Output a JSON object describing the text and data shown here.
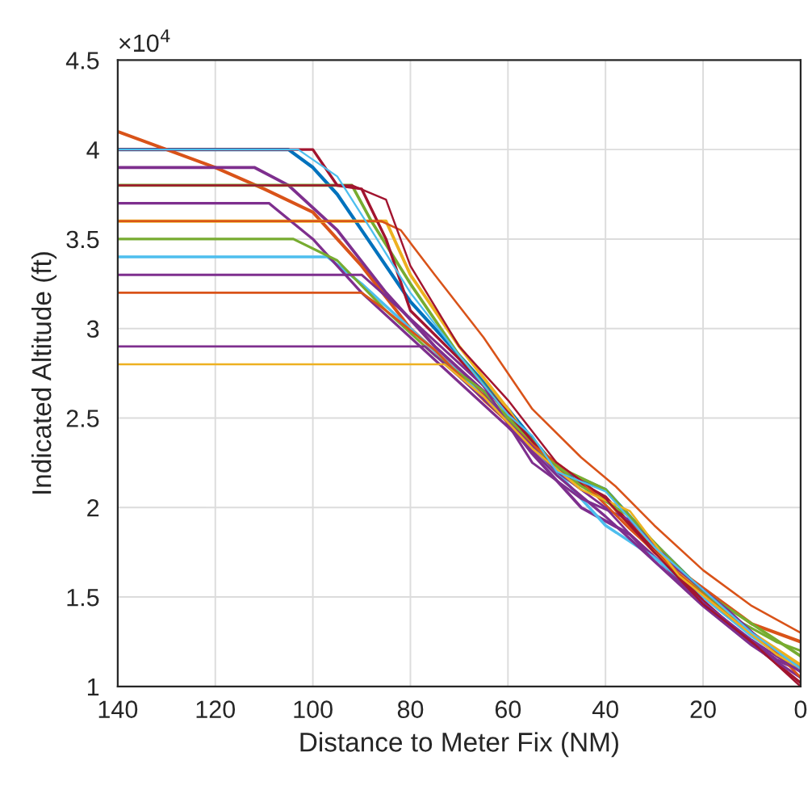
{
  "chart_data": {
    "type": "line",
    "xlabel": "Distance to Meter Fix (NM)",
    "ylabel": "Indicated Altitude (ft)",
    "xlim": [
      140,
      0
    ],
    "xticks": [
      140,
      120,
      100,
      80,
      60,
      40,
      20,
      0
    ],
    "ylim": [
      1,
      4.5
    ],
    "yticks": [
      1,
      1.5,
      2,
      2.5,
      3,
      3.5,
      4,
      4.5
    ],
    "annotations": [
      "×10$^{4}$"
    ],
    "grid": true,
    "marker": "none",
    "line_style": "solid",
    "series": [
      {
        "color": "#0072bd",
        "x": [
          140,
          105,
          100,
          95,
          90,
          80,
          70,
          60,
          50,
          40,
          30,
          20,
          10,
          0
        ],
        "values": [
          4.0,
          4.0,
          3.9,
          3.75,
          3.55,
          3.15,
          2.85,
          2.55,
          2.22,
          2.1,
          1.8,
          1.53,
          1.3,
          1.1
        ]
      },
      {
        "color": "#d95319",
        "x": [
          140,
          120,
          110,
          100,
          90,
          80,
          70,
          60,
          50,
          40,
          30,
          20,
          10,
          0
        ],
        "values": [
          4.1,
          3.9,
          3.78,
          3.65,
          3.35,
          3.0,
          2.75,
          2.5,
          2.2,
          2.05,
          1.75,
          1.55,
          1.35,
          1.25
        ]
      },
      {
        "color": "#edb120",
        "x": [
          140,
          85,
          80,
          70,
          60,
          55,
          50,
          40,
          30,
          20,
          10,
          0
        ],
        "values": [
          3.6,
          3.6,
          3.3,
          2.9,
          2.55,
          2.35,
          2.2,
          2.05,
          1.78,
          1.52,
          1.3,
          1.12
        ]
      },
      {
        "color": "#7e2f8e",
        "x": [
          140,
          112,
          105,
          95,
          85,
          75,
          65,
          55,
          45,
          35,
          25,
          15,
          5,
          0
        ],
        "values": [
          3.9,
          3.9,
          3.8,
          3.55,
          3.2,
          2.9,
          2.65,
          2.3,
          2.0,
          1.85,
          1.6,
          1.35,
          1.15,
          1.09
        ]
      },
      {
        "color": "#77ac30",
        "x": [
          140,
          92,
          88,
          80,
          70,
          60,
          50,
          40,
          30,
          20,
          10,
          0
        ],
        "values": [
          3.8,
          3.8,
          3.6,
          3.25,
          2.85,
          2.52,
          2.23,
          2.1,
          1.8,
          1.53,
          1.35,
          1.17
        ]
      },
      {
        "color": "#4dbeee",
        "x": [
          140,
          97,
          90,
          80,
          70,
          60,
          50,
          40,
          30,
          20,
          10,
          0
        ],
        "values": [
          3.4,
          3.4,
          3.25,
          3.0,
          2.75,
          2.48,
          2.2,
          1.9,
          1.72,
          1.5,
          1.28,
          1.1
        ]
      },
      {
        "color": "#a2142f",
        "x": [
          140,
          100,
          95,
          90,
          85,
          80,
          70,
          60,
          50,
          40,
          30,
          20,
          10,
          0
        ],
        "values": [
          4.0,
          4.0,
          3.8,
          3.78,
          3.5,
          3.1,
          2.83,
          2.53,
          2.21,
          2.06,
          1.76,
          1.48,
          1.24,
          1.02
        ]
      },
      {
        "color": "#7e2f8e",
        "x": [
          140,
          109,
          100,
          90,
          80,
          70,
          60,
          50,
          40,
          30,
          20,
          10,
          0
        ],
        "values": [
          3.7,
          3.7,
          3.5,
          3.2,
          2.95,
          2.7,
          2.45,
          2.18,
          1.95,
          1.7,
          1.45,
          1.23,
          1.05
        ]
      },
      {
        "color": "#77ac30",
        "x": [
          140,
          104,
          95,
          85,
          75,
          65,
          55,
          45,
          35,
          25,
          15,
          5,
          0
        ],
        "values": [
          3.5,
          3.5,
          3.38,
          3.1,
          2.85,
          2.65,
          2.35,
          2.12,
          1.95,
          1.66,
          1.4,
          1.25,
          1.2
        ]
      },
      {
        "color": "#7e2f8e",
        "x": [
          140,
          90,
          85,
          75,
          65,
          55,
          45,
          35,
          25,
          15,
          5,
          0
        ],
        "values": [
          3.3,
          3.3,
          3.18,
          2.93,
          2.68,
          2.25,
          2.05,
          1.93,
          1.65,
          1.43,
          1.18,
          1.1
        ]
      },
      {
        "color": "#d95319",
        "x": [
          140,
          90,
          85,
          75,
          65,
          55,
          45,
          35,
          25,
          15,
          5,
          0
        ],
        "values": [
          3.2,
          3.2,
          3.1,
          2.88,
          2.6,
          2.35,
          2.15,
          1.88,
          1.63,
          1.4,
          1.19,
          1.05
        ]
      },
      {
        "color": "#7e2f8e",
        "x": [
          140,
          77,
          70,
          60,
          50,
          40,
          30,
          20,
          10,
          0
        ],
        "values": [
          2.9,
          2.9,
          2.73,
          2.48,
          2.2,
          2.0,
          1.7,
          1.47,
          1.26,
          1.08
        ]
      },
      {
        "color": "#edb120",
        "x": [
          140,
          73,
          65,
          55,
          45,
          35,
          25,
          15,
          5,
          0
        ],
        "values": [
          2.8,
          2.8,
          2.62,
          2.33,
          2.1,
          1.98,
          1.62,
          1.4,
          1.18,
          1.1
        ]
      },
      {
        "color": "#d95319",
        "x": [
          140,
          86,
          82,
          75,
          65,
          55,
          45,
          38,
          30,
          20,
          10,
          0
        ],
        "values": [
          3.6,
          3.6,
          3.55,
          3.3,
          2.95,
          2.55,
          2.28,
          2.12,
          1.9,
          1.65,
          1.45,
          1.3
        ]
      },
      {
        "color": "#a2142f",
        "x": [
          140,
          92,
          85,
          80,
          70,
          60,
          50,
          40,
          30,
          20,
          10,
          0
        ],
        "values": [
          3.8,
          3.8,
          3.72,
          3.35,
          2.9,
          2.6,
          2.25,
          2.05,
          1.75,
          1.46,
          1.25,
          1.0
        ]
      },
      {
        "color": "#4dbeee",
        "x": [
          140,
          103,
          95,
          88,
          80,
          70,
          60,
          55,
          50,
          40,
          30,
          20,
          10,
          0
        ],
        "values": [
          4.0,
          4.0,
          3.85,
          3.55,
          3.2,
          2.85,
          2.52,
          2.4,
          2.2,
          2.09,
          1.78,
          1.54,
          1.3,
          1.1
        ]
      }
    ]
  }
}
